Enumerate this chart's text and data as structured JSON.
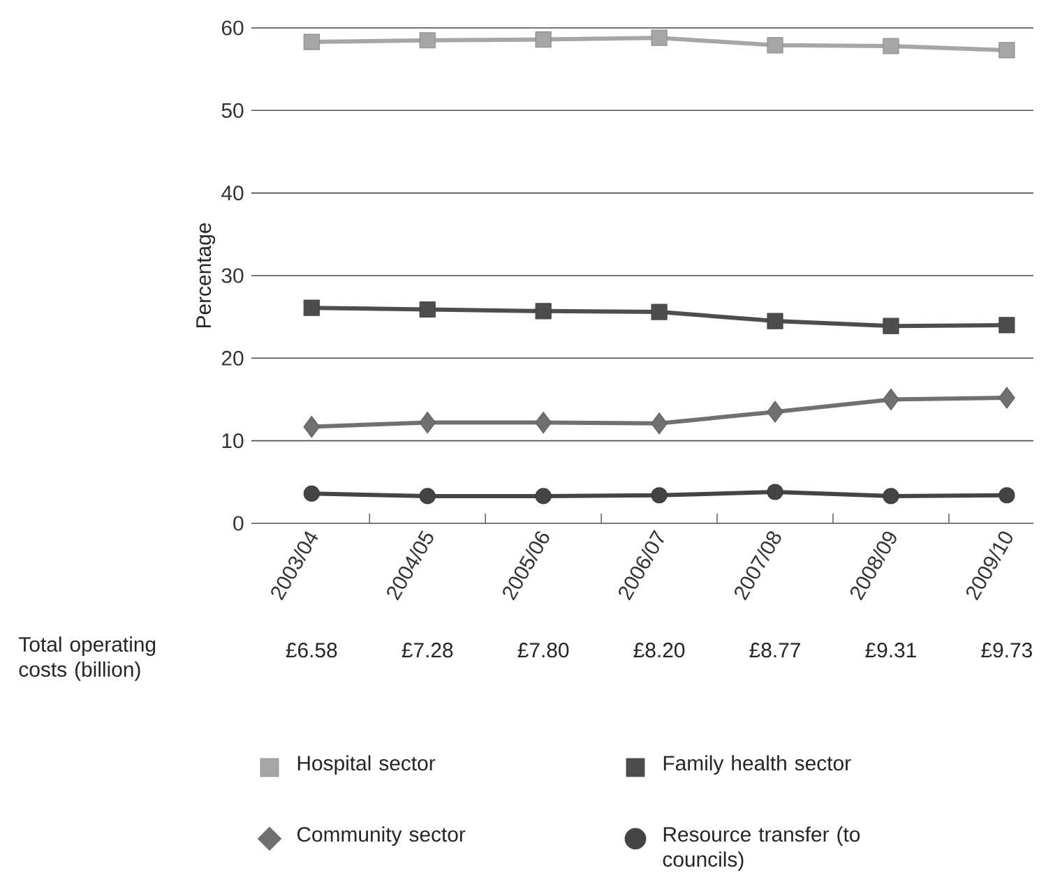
{
  "chart_data": {
    "type": "line",
    "ylabel": "Percentage",
    "categories": [
      "2003/04",
      "2004/05",
      "2005/06",
      "2006/07",
      "2007/08",
      "2008/09",
      "2009/10"
    ],
    "series": [
      {
        "name": "Hospital sector",
        "color": "#a6a6a6",
        "marker": "square",
        "values": [
          58.3,
          58.5,
          58.6,
          58.8,
          57.9,
          57.8,
          57.3
        ]
      },
      {
        "name": "Family health sector",
        "color": "#4d4d4d",
        "marker": "square",
        "values": [
          26.1,
          25.9,
          25.7,
          25.6,
          24.5,
          23.9,
          24.0
        ]
      },
      {
        "name": "Community sector",
        "color": "#707070",
        "marker": "diamond",
        "values": [
          11.7,
          12.2,
          12.2,
          12.1,
          13.5,
          15.0,
          15.2
        ]
      },
      {
        "name": "Resource transfer (to councils)",
        "color": "#444444",
        "marker": "circle",
        "values": [
          3.6,
          3.3,
          3.3,
          3.4,
          3.8,
          3.3,
          3.4
        ]
      }
    ],
    "ylim": [
      0,
      60
    ],
    "yticks": [
      0,
      10,
      20,
      30,
      40,
      50,
      60
    ],
    "grid": "y",
    "legend": "bottom",
    "annotations": [
      "Total operating costs (billion)",
      "£6.58",
      "£7.28",
      "£7.80",
      "£8.20",
      "£8.77",
      "£9.31",
      "£9.73"
    ]
  }
}
